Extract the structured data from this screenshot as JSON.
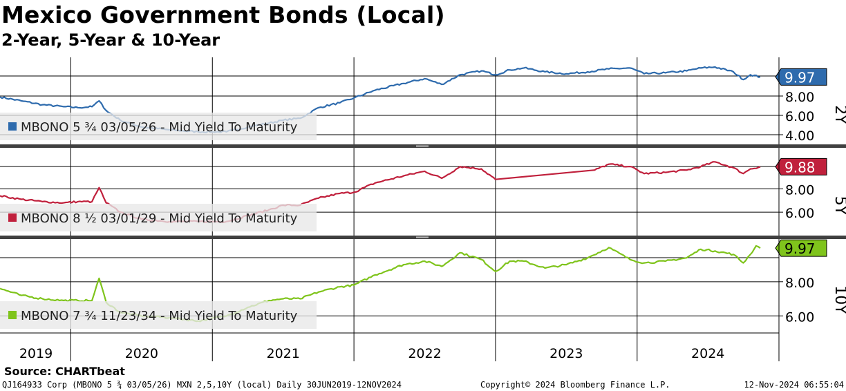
{
  "header": {
    "title": "Mexico Government Bonds (Local)",
    "subtitle": "2-Year, 5-Year & 10-Year"
  },
  "footer": {
    "source": "Source: CHARTbeat",
    "left": "QJ164933 Corp (MBONO 5 ¾ 03/05/26) MXN 2,5,10Y (local)  Daily 30JUN2019-12NOV2024",
    "center": "Copyright© 2024 Bloomberg Finance L.P.",
    "right": "12-Nov-2024 06:55:04"
  },
  "chart_data": {
    "type": "line",
    "x_start": 2019.5,
    "x_end": 2024.87,
    "x_tick_labels": [
      "2019",
      "2020",
      "2021",
      "2022",
      "2023",
      "2024"
    ],
    "panels": [
      {
        "id": "2y",
        "panel_label": "2Y",
        "series_name": "MBONO 5 ¾ 03/05/26 - Mid Yield To Maturity",
        "color": "#2e6bad",
        "last_value": 9.97,
        "last_value_label": "9.97",
        "ylim": [
          3.0,
          12.0
        ],
        "y_ticks": [
          4.0,
          6.0,
          8.0
        ],
        "y_tick_labels": [
          "4.00",
          "6.00",
          "8.00"
        ],
        "points": [
          [
            2019.5,
            7.9
          ],
          [
            2019.65,
            7.5
          ],
          [
            2019.8,
            7.1
          ],
          [
            2019.95,
            6.9
          ],
          [
            2020.05,
            6.8
          ],
          [
            2020.15,
            6.9
          ],
          [
            2020.2,
            7.5
          ],
          [
            2020.25,
            6.5
          ],
          [
            2020.35,
            5.5
          ],
          [
            2020.5,
            4.8
          ],
          [
            2020.7,
            4.5
          ],
          [
            2020.9,
            4.3
          ],
          [
            2021.1,
            4.3
          ],
          [
            2021.25,
            4.8
          ],
          [
            2021.4,
            5.2
          ],
          [
            2021.5,
            5.5
          ],
          [
            2021.62,
            5.7
          ],
          [
            2021.75,
            6.8
          ],
          [
            2021.9,
            7.3
          ],
          [
            2022.0,
            7.8
          ],
          [
            2022.15,
            8.6
          ],
          [
            2022.35,
            9.3
          ],
          [
            2022.5,
            9.8
          ],
          [
            2022.62,
            9.2
          ],
          [
            2022.75,
            10.2
          ],
          [
            2022.9,
            10.6
          ],
          [
            2023.0,
            10.2
          ],
          [
            2023.1,
            10.7
          ],
          [
            2023.2,
            10.9
          ],
          [
            2023.35,
            10.5
          ],
          [
            2023.5,
            10.3
          ],
          [
            2023.65,
            10.5
          ],
          [
            2023.8,
            10.8
          ],
          [
            2023.95,
            10.9
          ],
          [
            2024.05,
            10.3
          ],
          [
            2024.2,
            10.4
          ],
          [
            2024.35,
            10.6
          ],
          [
            2024.45,
            10.9
          ],
          [
            2024.55,
            11.0
          ],
          [
            2024.68,
            10.5
          ],
          [
            2024.75,
            9.7
          ],
          [
            2024.8,
            10.2
          ],
          [
            2024.87,
            9.97
          ]
        ]
      },
      {
        "id": "5y",
        "panel_label": "5Y",
        "series_name": "MBONO 8 ½ 03/01/29 - Mid Yield To Maturity",
        "color": "#c0203c",
        "last_value": 9.88,
        "last_value_label": "9.88",
        "ylim": [
          4.0,
          11.5
        ],
        "y_ticks": [
          6.0,
          8.0
        ],
        "y_tick_labels": [
          "6.00",
          "8.00"
        ],
        "points": [
          [
            2019.5,
            7.4
          ],
          [
            2019.65,
            7.1
          ],
          [
            2019.8,
            6.9
          ],
          [
            2019.95,
            6.8
          ],
          [
            2020.05,
            6.9
          ],
          [
            2020.15,
            6.9
          ],
          [
            2020.2,
            8.1
          ],
          [
            2020.25,
            6.8
          ],
          [
            2020.35,
            6.0
          ],
          [
            2020.5,
            5.4
          ],
          [
            2020.7,
            5.2
          ],
          [
            2020.9,
            5.2
          ],
          [
            2021.1,
            5.2
          ],
          [
            2021.25,
            5.7
          ],
          [
            2021.4,
            6.2
          ],
          [
            2021.5,
            6.6
          ],
          [
            2021.62,
            6.6
          ],
          [
            2021.75,
            7.2
          ],
          [
            2021.9,
            7.6
          ],
          [
            2022.0,
            7.7
          ],
          [
            2022.15,
            8.5
          ],
          [
            2022.35,
            9.1
          ],
          [
            2022.5,
            9.5
          ],
          [
            2022.62,
            8.9
          ],
          [
            2022.75,
            9.9
          ],
          [
            2022.9,
            9.7
          ],
          [
            2023.0,
            8.8
          ],
          [
            2023.7,
            9.6
          ],
          [
            2023.8,
            10.1
          ],
          [
            2023.95,
            9.9
          ],
          [
            2024.05,
            9.3
          ],
          [
            2024.2,
            9.4
          ],
          [
            2024.35,
            9.6
          ],
          [
            2024.45,
            9.9
          ],
          [
            2024.55,
            10.3
          ],
          [
            2024.68,
            9.8
          ],
          [
            2024.75,
            9.3
          ],
          [
            2024.8,
            9.7
          ],
          [
            2024.87,
            9.88
          ]
        ]
      },
      {
        "id": "10y",
        "panel_label": "10Y",
        "series_name": "MBONO 7 ¾ 11/23/34 - Mid Yield To Maturity",
        "color": "#7fc41c",
        "last_value": 9.97,
        "last_value_label": "9.97",
        "ylim": [
          5.0,
          10.5
        ],
        "y_ticks": [
          6.0,
          8.0
        ],
        "y_tick_labels": [
          "6.00",
          "8.00"
        ],
        "points": [
          [
            2019.5,
            7.6
          ],
          [
            2019.65,
            7.2
          ],
          [
            2019.8,
            7.0
          ],
          [
            2019.95,
            6.9
          ],
          [
            2020.05,
            6.9
          ],
          [
            2020.15,
            6.9
          ],
          [
            2020.2,
            8.2
          ],
          [
            2020.25,
            6.8
          ],
          [
            2020.35,
            6.2
          ],
          [
            2020.5,
            6.0
          ],
          [
            2020.7,
            5.9
          ],
          [
            2020.9,
            5.7
          ],
          [
            2021.1,
            6.0
          ],
          [
            2021.25,
            6.5
          ],
          [
            2021.4,
            6.9
          ],
          [
            2021.5,
            7.0
          ],
          [
            2021.62,
            7.0
          ],
          [
            2021.75,
            7.4
          ],
          [
            2021.9,
            7.7
          ],
          [
            2022.0,
            7.8
          ],
          [
            2022.15,
            8.4
          ],
          [
            2022.35,
            9.0
          ],
          [
            2022.5,
            9.2
          ],
          [
            2022.62,
            8.9
          ],
          [
            2022.75,
            9.7
          ],
          [
            2022.9,
            9.3
          ],
          [
            2023.0,
            8.6
          ],
          [
            2023.1,
            9.2
          ],
          [
            2023.2,
            9.2
          ],
          [
            2023.35,
            8.8
          ],
          [
            2023.5,
            9.0
          ],
          [
            2023.65,
            9.4
          ],
          [
            2023.8,
            10.0
          ],
          [
            2023.95,
            9.3
          ],
          [
            2024.05,
            9.1
          ],
          [
            2024.2,
            9.2
          ],
          [
            2024.35,
            9.4
          ],
          [
            2024.45,
            9.9
          ],
          [
            2024.55,
            9.8
          ],
          [
            2024.68,
            9.6
          ],
          [
            2024.75,
            9.1
          ],
          [
            2024.8,
            9.6
          ],
          [
            2024.84,
            10.1
          ],
          [
            2024.87,
            9.97
          ]
        ]
      }
    ]
  }
}
